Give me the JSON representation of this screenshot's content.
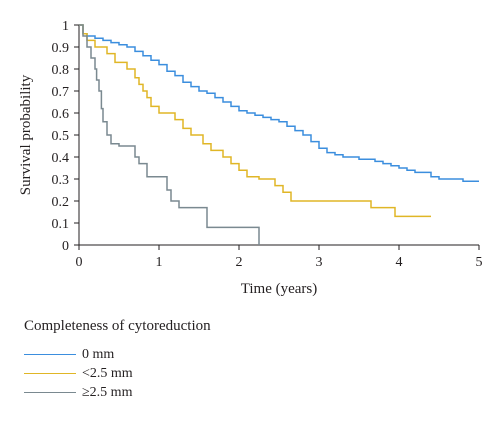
{
  "chart_data": {
    "type": "line",
    "step": true,
    "xlabel": "Time (years)",
    "ylabel": "Survival probability",
    "xlim": [
      0,
      5
    ],
    "ylim": [
      0,
      1
    ],
    "x_ticks": [
      "0",
      "1",
      "2",
      "3",
      "4",
      "5"
    ],
    "y_ticks": [
      "0",
      "0.1",
      "0.2",
      "0.3",
      "0.4",
      "0.5",
      "0.6",
      "0.7",
      "0.8",
      "0.9",
      "1"
    ],
    "legend_title": "Completeness of cytoreduction",
    "legend_position": "bottom-left",
    "series": [
      {
        "name": "0 mm",
        "color": "#3b8ede",
        "x": [
          0,
          0.05,
          0.1,
          0.2,
          0.3,
          0.4,
          0.5,
          0.6,
          0.7,
          0.8,
          0.9,
          1.0,
          1.1,
          1.2,
          1.3,
          1.4,
          1.5,
          1.6,
          1.7,
          1.8,
          1.9,
          2.0,
          2.1,
          2.2,
          2.3,
          2.4,
          2.5,
          2.6,
          2.7,
          2.8,
          2.9,
          3.0,
          3.1,
          3.2,
          3.3,
          3.4,
          3.5,
          3.6,
          3.7,
          3.8,
          3.9,
          4.0,
          4.1,
          4.2,
          4.3,
          4.4,
          4.5,
          4.6,
          4.7,
          4.8,
          4.9,
          5.0
        ],
        "y": [
          1.0,
          0.96,
          0.95,
          0.94,
          0.93,
          0.92,
          0.91,
          0.9,
          0.88,
          0.86,
          0.84,
          0.82,
          0.79,
          0.77,
          0.74,
          0.72,
          0.7,
          0.69,
          0.67,
          0.65,
          0.63,
          0.61,
          0.6,
          0.59,
          0.58,
          0.57,
          0.56,
          0.54,
          0.52,
          0.5,
          0.47,
          0.44,
          0.42,
          0.41,
          0.4,
          0.4,
          0.39,
          0.39,
          0.38,
          0.37,
          0.36,
          0.35,
          0.34,
          0.33,
          0.33,
          0.31,
          0.3,
          0.3,
          0.3,
          0.29,
          0.29,
          0.29
        ]
      },
      {
        "name": "<2.5 mm",
        "color": "#e0b626",
        "x": [
          0,
          0.05,
          0.1,
          0.2,
          0.35,
          0.45,
          0.6,
          0.7,
          0.75,
          0.8,
          0.85,
          0.9,
          1.0,
          1.2,
          1.3,
          1.4,
          1.55,
          1.65,
          1.8,
          1.9,
          2.0,
          2.1,
          2.25,
          2.45,
          2.55,
          2.65,
          3.0,
          3.65,
          3.95,
          4.4
        ],
        "y": [
          1.0,
          0.96,
          0.93,
          0.9,
          0.87,
          0.83,
          0.8,
          0.76,
          0.73,
          0.7,
          0.67,
          0.63,
          0.6,
          0.57,
          0.53,
          0.5,
          0.46,
          0.43,
          0.4,
          0.37,
          0.34,
          0.31,
          0.3,
          0.27,
          0.24,
          0.2,
          0.2,
          0.17,
          0.13,
          0.13
        ]
      },
      {
        "name": "≥2.5 mm",
        "color": "#7a8990",
        "x": [
          0,
          0.05,
          0.1,
          0.15,
          0.2,
          0.22,
          0.25,
          0.28,
          0.3,
          0.35,
          0.4,
          0.5,
          0.7,
          0.75,
          0.85,
          1.1,
          1.15,
          1.25,
          1.6,
          2.25
        ],
        "y": [
          1.0,
          0.95,
          0.9,
          0.85,
          0.8,
          0.75,
          0.7,
          0.62,
          0.56,
          0.5,
          0.46,
          0.45,
          0.4,
          0.37,
          0.31,
          0.25,
          0.2,
          0.17,
          0.08,
          0.0
        ]
      }
    ]
  }
}
